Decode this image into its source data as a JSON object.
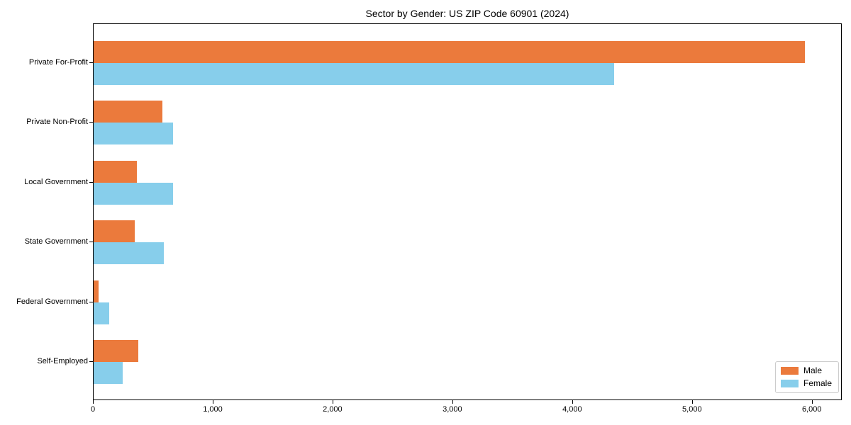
{
  "chart_data": {
    "type": "bar",
    "orientation": "horizontal",
    "title": "Sector by Gender: US ZIP Code 60901 (2024)",
    "categories": [
      "Private For-Profit",
      "Private Non-Profit",
      "Local Government",
      "State Government",
      "Federal Government",
      "Self-Employed"
    ],
    "series": [
      {
        "name": "Male",
        "color": "#EB7A3C",
        "values": [
          5950,
          575,
          360,
          345,
          40,
          375
        ]
      },
      {
        "name": "Female",
        "color": "#87CEEB",
        "values": [
          4350,
          665,
          665,
          590,
          130,
          245
        ]
      }
    ],
    "xlabel": "",
    "ylabel": "",
    "xlim": [
      0,
      6250
    ],
    "xticks": [
      0,
      1000,
      2000,
      3000,
      4000,
      5000,
      6000
    ],
    "xtick_labels": [
      "0",
      "1,000",
      "2,000",
      "3,000",
      "4,000",
      "5,000",
      "6,000"
    ],
    "grid": false,
    "legend_position": "lower right",
    "frame": "full-box",
    "colors": {
      "axis": "#000000",
      "legend_border": "#cccccc",
      "background": "#ffffff"
    }
  }
}
